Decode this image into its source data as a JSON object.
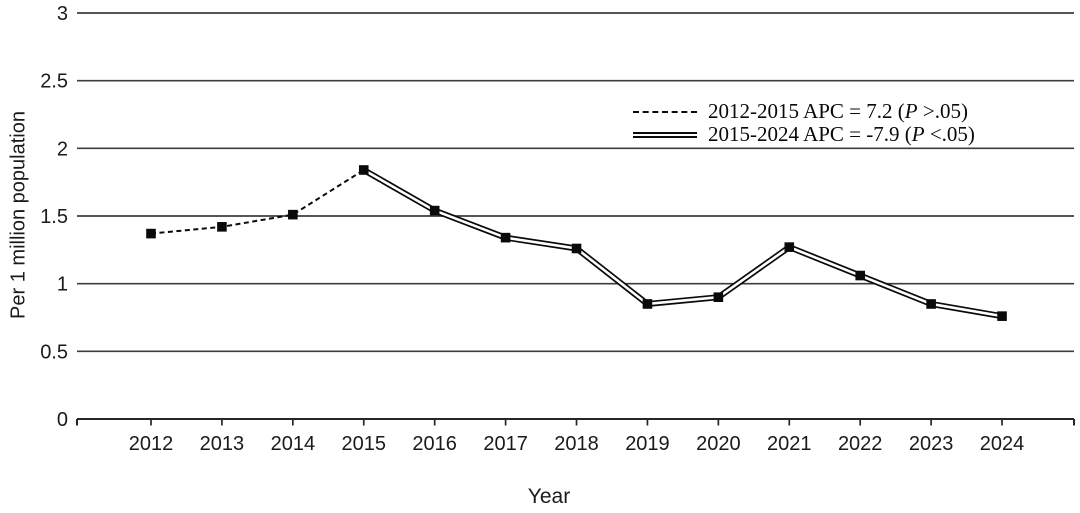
{
  "chart_data": {
    "type": "line",
    "title": "",
    "xlabel": "Year",
    "ylabel": "Per 1 million population",
    "years": [
      2012,
      2013,
      2014,
      2015,
      2016,
      2017,
      2018,
      2019,
      2020,
      2021,
      2022,
      2023,
      2024
    ],
    "series": [
      {
        "name": "2012-2015 APC = 7.2 (P >.05)",
        "style": "dashed",
        "x": [
          2012,
          2013,
          2014,
          2015
        ],
        "values": [
          1.37,
          1.42,
          1.51,
          1.84
        ]
      },
      {
        "name": "2015-2024 APC = -7.9 (P <.05)",
        "style": "double",
        "x": [
          2015,
          2016,
          2017,
          2018,
          2019,
          2020,
          2021,
          2022,
          2023,
          2024
        ],
        "values": [
          1.84,
          1.54,
          1.34,
          1.26,
          0.85,
          0.9,
          1.27,
          1.06,
          0.85,
          0.76
        ]
      }
    ],
    "ylim": [
      0,
      3
    ],
    "yticks": [
      0,
      0.5,
      1,
      1.5,
      2,
      2.5,
      3
    ],
    "ytick_labels": [
      "0",
      "0.5",
      "1",
      "1.5",
      "2",
      "2.5",
      "3"
    ],
    "grid": "horizontal",
    "legend_position": "inside-upper-right",
    "marker": "filled-square",
    "colors": {
      "line": "#0a0a0a",
      "grid": "#3d3d3d",
      "axis": "#262626",
      "background": "#ffffff",
      "text": "#1a1a1a"
    }
  },
  "legend": {
    "items": [
      {
        "line_style": "dashed",
        "prefix": "2012-2015 APC = 7.2 (",
        "p": "P",
        "suffix": " >.05)"
      },
      {
        "line_style": "double",
        "prefix": "2015-2024 APC = -7.9 (",
        "p": "P",
        "suffix": " <.05)"
      }
    ]
  }
}
